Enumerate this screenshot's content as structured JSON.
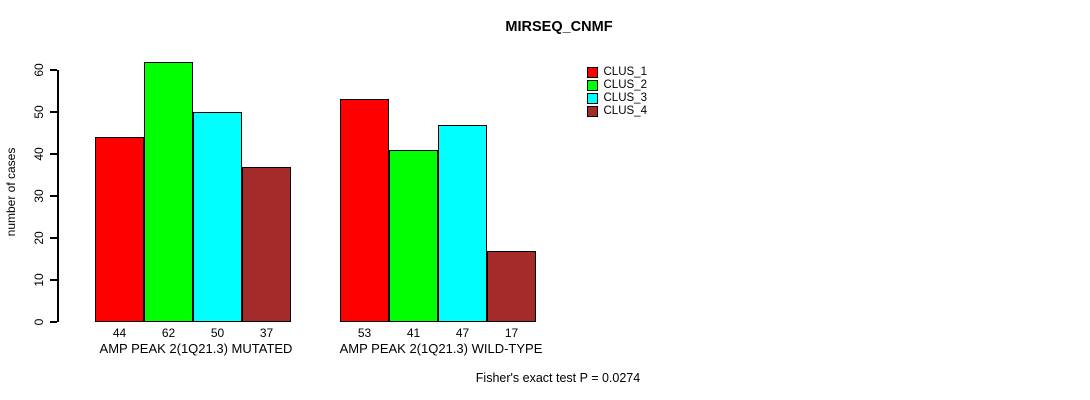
{
  "chart_data": {
    "type": "bar",
    "title": "MIRSEQ_CNMF",
    "ylabel": "number of cases",
    "xlabel": "",
    "footnote": "Fisher's exact test P = 0.0274",
    "ylim": [
      0,
      60
    ],
    "yticks": [
      0,
      10,
      20,
      30,
      40,
      50,
      60
    ],
    "grid": false,
    "legend_position": "top-right",
    "value_labels_shown": true,
    "categories": [
      "AMP PEAK 2(1Q21.3) MUTATED",
      "AMP PEAK 2(1Q21.3) WILD-TYPE"
    ],
    "series": [
      {
        "name": "CLUS_1",
        "color": "#ff0000",
        "values": [
          44,
          53
        ]
      },
      {
        "name": "CLUS_2",
        "color": "#00ff00",
        "values": [
          62,
          41
        ]
      },
      {
        "name": "CLUS_3",
        "color": "#00ffff",
        "values": [
          50,
          47
        ]
      },
      {
        "name": "CLUS_4",
        "color": "#a52a2a",
        "values": [
          37,
          17
        ]
      }
    ],
    "colors": {
      "bar_border": "#000000",
      "axis": "#000000",
      "text": "#000000",
      "background": "#ffffff"
    }
  }
}
